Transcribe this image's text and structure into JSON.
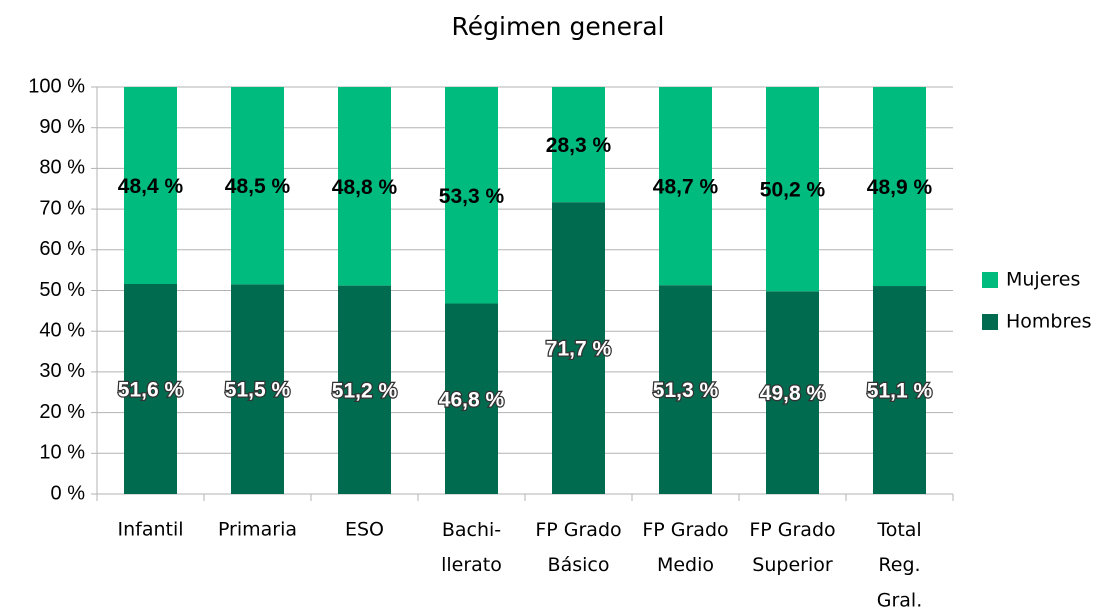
{
  "chart_data": {
    "type": "stacked_bar",
    "title": "Régimen general",
    "categories": [
      "Infantil",
      "Primaria",
      "ESO",
      "Bachi-\nllerato",
      "FP Grado\nBásico",
      "FP Grado\nMedio",
      "FP Grado\nSuperior",
      "Total\nReg.\nGral."
    ],
    "series": [
      {
        "name": "Hombres",
        "color": "#006b4f",
        "values": [
          51.6,
          51.5,
          51.2,
          46.8,
          71.7,
          51.3,
          49.8,
          51.1
        ],
        "value_labels": [
          "51,6 %",
          "51,5 %",
          "51,2 %",
          "46,8 %",
          "71,7 %",
          "51,3 %",
          "49,8 %",
          "51,1 %"
        ]
      },
      {
        "name": "Mujeres",
        "color": "#00bb7e",
        "values": [
          48.4,
          48.5,
          48.8,
          53.3,
          28.3,
          48.7,
          50.2,
          48.9
        ],
        "value_labels": [
          "48,4 %",
          "48,5 %",
          "48,8 %",
          "53,3 %",
          "28,3 %",
          "48,7 %",
          "50,2 %",
          "48,9 %"
        ]
      }
    ],
    "ylim": [
      0,
      100
    ],
    "yticks": [
      {
        "value": 0,
        "label": "0 %"
      },
      {
        "value": 10,
        "label": "10 %"
      },
      {
        "value": 20,
        "label": "20 %"
      },
      {
        "value": 30,
        "label": "30 %"
      },
      {
        "value": 40,
        "label": "40 %"
      },
      {
        "value": 50,
        "label": "50 %"
      },
      {
        "value": 60,
        "label": "60 %"
      },
      {
        "value": 70,
        "label": "70 %"
      },
      {
        "value": 80,
        "label": "80 %"
      },
      {
        "value": 90,
        "label": "90 %"
      },
      {
        "value": 100,
        "label": "100 %"
      }
    ],
    "grid": true,
    "legend": "right"
  }
}
